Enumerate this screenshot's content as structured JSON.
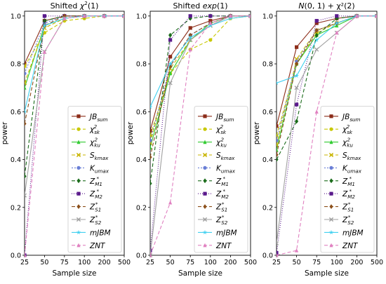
{
  "figure": {
    "ylabel": "power",
    "xlabel": "Sample size"
  },
  "chart_data": [
    {
      "type": "line",
      "title": "Shifted χ²(1)",
      "title_parts": {
        "base": "Shifted ",
        "italic": "χ",
        "sup": "2",
        "tail": "(1)"
      },
      "xlabel": "Sample size",
      "ylabel": "power",
      "x": [
        "25",
        "50",
        "75",
        "100",
        "200",
        "500"
      ],
      "ylim": [
        0,
        1.02
      ],
      "yticks": [
        "0.0",
        "0.2",
        "0.4",
        "0.6",
        "0.8",
        "1.0"
      ],
      "grid": false,
      "legend": "bottom-right",
      "series": [
        {
          "name": "JBsum",
          "values": [
            0.8,
            0.98,
            1.0,
            1.0,
            1.0,
            1.0
          ]
        },
        {
          "name": "χ²sk",
          "values": [
            0.79,
            0.93,
            0.98,
            0.99,
            1.0,
            1.0
          ]
        },
        {
          "name": "χ²ku",
          "values": [
            0.7,
            0.96,
            0.99,
            1.0,
            1.0,
            1.0
          ]
        },
        {
          "name": "Skmax",
          "values": [
            0.72,
            0.95,
            0.99,
            1.0,
            1.0,
            1.0
          ]
        },
        {
          "name": "Kumax",
          "values": [
            0.76,
            0.97,
            1.0,
            1.0,
            1.0,
            1.0
          ]
        },
        {
          "name": "Z*M1",
          "values": [
            0.33,
            0.98,
            1.0,
            1.0,
            1.0,
            1.0
          ]
        },
        {
          "name": "Z*M2",
          "values": [
            0.0,
            1.0,
            1.0,
            1.0,
            1.0,
            1.0
          ]
        },
        {
          "name": "Z*S1",
          "values": [
            0.55,
            0.96,
            1.0,
            1.0,
            1.0,
            1.0
          ]
        },
        {
          "name": "Z*S2",
          "values": [
            0.25,
            0.85,
            0.99,
            1.0,
            1.0,
            1.0
          ]
        },
        {
          "name": "mJBM",
          "values": [
            0.6,
            0.96,
            0.99,
            1.0,
            1.0,
            1.0
          ]
        },
        {
          "name": "ZNT",
          "values": [
            0.0,
            0.85,
            0.99,
            1.0,
            1.0,
            1.0
          ]
        }
      ]
    },
    {
      "type": "line",
      "title": "Shifted exp(1)",
      "title_parts": {
        "base": "Shifted ",
        "italic": "exp",
        "sup": "",
        "tail": "(1)"
      },
      "xlabel": "Sample size",
      "ylabel": "power",
      "x": [
        "25",
        "50",
        "75",
        "100",
        "200",
        "500"
      ],
      "ylim": [
        0,
        1.02
      ],
      "yticks": [
        "0.0",
        "0.2",
        "0.4",
        "0.6",
        "0.8",
        "1.0"
      ],
      "grid": false,
      "legend": "bottom-right",
      "series": [
        {
          "name": "JBsum",
          "values": [
            0.52,
            0.83,
            0.95,
            0.98,
            1.0,
            1.0
          ]
        },
        {
          "name": "χ²sk",
          "values": [
            0.5,
            0.76,
            0.86,
            0.9,
            0.99,
            1.0
          ]
        },
        {
          "name": "χ²ku",
          "values": [
            0.45,
            0.76,
            0.9,
            0.97,
            1.0,
            1.0
          ]
        },
        {
          "name": "Skmax",
          "values": [
            0.47,
            0.78,
            0.9,
            0.96,
            1.0,
            1.0
          ]
        },
        {
          "name": "Kumax",
          "values": [
            0.48,
            0.79,
            0.92,
            0.97,
            1.0,
            1.0
          ]
        },
        {
          "name": "Z*M1",
          "values": [
            0.3,
            0.92,
            0.99,
            1.0,
            1.0,
            1.0
          ]
        },
        {
          "name": "Z*M2",
          "values": [
            0.02,
            0.9,
            1.0,
            1.0,
            1.0,
            1.0
          ]
        },
        {
          "name": "Z*S1",
          "values": [
            0.41,
            0.79,
            0.92,
            0.97,
            1.0,
            1.0
          ]
        },
        {
          "name": "Z*S2",
          "values": [
            0.0,
            0.72,
            0.9,
            0.96,
            1.0,
            1.0
          ]
        },
        {
          "name": "mJBM",
          "values": [
            0.62,
            0.8,
            0.91,
            0.96,
            0.99,
            1.0
          ]
        },
        {
          "name": "ZNT",
          "values": [
            0.0,
            0.22,
            0.86,
            0.97,
            1.0,
            1.0
          ]
        }
      ]
    },
    {
      "type": "line",
      "title": "N(0,1) + χ²(2)",
      "title_parts": {
        "base": "",
        "italic": "N",
        "sup": "",
        "tail": "(0, 1) + χ²(2)"
      },
      "xlabel": "Sample size",
      "ylabel": "power",
      "x": [
        "25",
        "50",
        "75",
        "100",
        "200",
        "500"
      ],
      "ylim": [
        0,
        1.02
      ],
      "yticks": [
        "0.0",
        "0.2",
        "0.4",
        "0.6",
        "0.8",
        "1.0"
      ],
      "grid": false,
      "legend": "bottom-right",
      "series": [
        {
          "name": "JBsum",
          "values": [
            0.54,
            0.87,
            0.97,
            0.99,
            1.0,
            1.0
          ]
        },
        {
          "name": "χ²sk",
          "values": [
            0.5,
            0.8,
            0.93,
            0.97,
            1.0,
            1.0
          ]
        },
        {
          "name": "χ²ku",
          "values": [
            0.44,
            0.8,
            0.92,
            0.96,
            1.0,
            1.0
          ]
        },
        {
          "name": "Skmax",
          "values": [
            0.46,
            0.82,
            0.94,
            0.97,
            1.0,
            1.0
          ]
        },
        {
          "name": "Kumax",
          "values": [
            0.48,
            0.81,
            0.94,
            0.97,
            1.0,
            1.0
          ]
        },
        {
          "name": "Z*M1",
          "values": [
            0.4,
            0.56,
            0.92,
            0.99,
            1.0,
            1.0
          ]
        },
        {
          "name": "Z*M2",
          "values": [
            0.01,
            0.63,
            0.98,
            1.0,
            1.0,
            1.0
          ]
        },
        {
          "name": "Z*S1",
          "values": [
            0.42,
            0.8,
            0.94,
            0.97,
            1.0,
            1.0
          ]
        },
        {
          "name": "Z*S2",
          "values": [
            0.05,
            0.7,
            0.86,
            0.93,
            1.0,
            1.0
          ]
        },
        {
          "name": "mJBM",
          "values": [
            0.72,
            0.75,
            0.9,
            0.97,
            1.0,
            1.0
          ]
        },
        {
          "name": "ZNT",
          "values": [
            0.0,
            0.02,
            0.6,
            0.93,
            1.0,
            1.0
          ]
        }
      ]
    }
  ],
  "legend_entries": [
    {
      "main": "JB",
      "sub": "sum",
      "sup": "",
      "color": "#8c2d19",
      "dash": "",
      "marker": "square"
    },
    {
      "main": "χ",
      "sub": "sk",
      "sup": "2",
      "color": "#c8c800",
      "dash": "5,3",
      "marker": "circle"
    },
    {
      "main": "χ",
      "sub": "ku",
      "sup": "2",
      "color": "#33cc33",
      "dash": "",
      "marker": "triangle"
    },
    {
      "main": "S",
      "sub": "kmax",
      "sup": "",
      "color": "#c8b400",
      "dash": "5,3",
      "marker": "x"
    },
    {
      "main": "K",
      "sub": "umax",
      "sup": "",
      "color": "#6a7fd6",
      "dash": "2,2",
      "marker": "circle"
    },
    {
      "main": "Z",
      "sub": "M1",
      "sup": "*",
      "color": "#1a6b1a",
      "dash": "5,3",
      "marker": "diamond"
    },
    {
      "main": "Z",
      "sub": "M2",
      "sup": "*",
      "color": "#5a1a8c",
      "dash": "1,2",
      "marker": "square"
    },
    {
      "main": "Z",
      "sub": "S1",
      "sup": "*",
      "color": "#8c4f1a",
      "dash": "5,3",
      "marker": "diamond"
    },
    {
      "main": "Z",
      "sub": "S2",
      "sup": "*",
      "color": "#a0a0a0",
      "dash": "",
      "marker": "x"
    },
    {
      "main": "mJBM",
      "sub": "",
      "sup": "",
      "color": "#40d0f0",
      "dash": "",
      "marker": "star"
    },
    {
      "main": "ZNT",
      "sub": "",
      "sup": "",
      "color": "#e080c0",
      "dash": "5,3",
      "marker": "triangle"
    }
  ]
}
